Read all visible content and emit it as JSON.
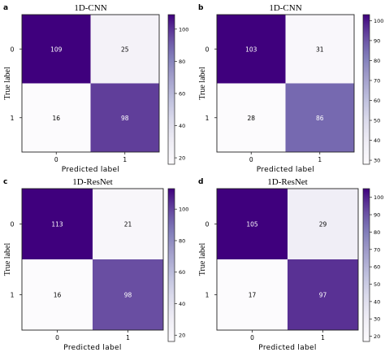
{
  "chart_data": [
    {
      "type": "heatmap",
      "panel_label": "a",
      "title": "1D-CNN",
      "xlabel": "Predicted label",
      "ylabel": "True label",
      "x_categories": [
        "0",
        "1"
      ],
      "y_categories": [
        "0",
        "1"
      ],
      "matrix": [
        [
          109,
          25
        ],
        [
          16,
          98
        ]
      ],
      "colorbar_ticks": [
        20,
        40,
        60,
        80,
        100
      ],
      "colorbar_range": [
        16,
        109
      ],
      "colormap": "Purples"
    },
    {
      "type": "heatmap",
      "panel_label": "b",
      "title": "1D-CNN",
      "xlabel": "Predicted label",
      "ylabel": "True label",
      "x_categories": [
        "0",
        "1"
      ],
      "y_categories": [
        "0",
        "1"
      ],
      "matrix": [
        [
          103,
          31
        ],
        [
          28,
          86
        ]
      ],
      "colorbar_ticks": [
        30,
        40,
        50,
        60,
        70,
        80,
        90,
        100
      ],
      "colorbar_range": [
        28,
        103
      ],
      "colormap": "Purples"
    },
    {
      "type": "heatmap",
      "panel_label": "c",
      "title": "1D-ResNet",
      "xlabel": "Predicted label",
      "ylabel": "True label",
      "x_categories": [
        "0",
        "1"
      ],
      "y_categories": [
        "0",
        "1"
      ],
      "matrix": [
        [
          113,
          21
        ],
        [
          16,
          98
        ]
      ],
      "colorbar_ticks": [
        20,
        40,
        60,
        80,
        100
      ],
      "colorbar_range": [
        16,
        113
      ],
      "colormap": "Purples"
    },
    {
      "type": "heatmap",
      "panel_label": "d",
      "title": "1D-ResNet",
      "xlabel": "Predicted label",
      "ylabel": "True label",
      "x_categories": [
        "0",
        "1"
      ],
      "y_categories": [
        "0",
        "1"
      ],
      "matrix": [
        [
          105,
          29
        ],
        [
          17,
          97
        ]
      ],
      "colorbar_ticks": [
        20,
        30,
        40,
        50,
        60,
        70,
        80,
        90,
        100
      ],
      "colorbar_range": [
        17,
        105
      ],
      "colormap": "Purples"
    }
  ],
  "colors": {
    "purples_low": "#fcfbfd",
    "purples_high": "#3f007d",
    "text_dark": "#000000",
    "text_light": "#ffffff"
  }
}
